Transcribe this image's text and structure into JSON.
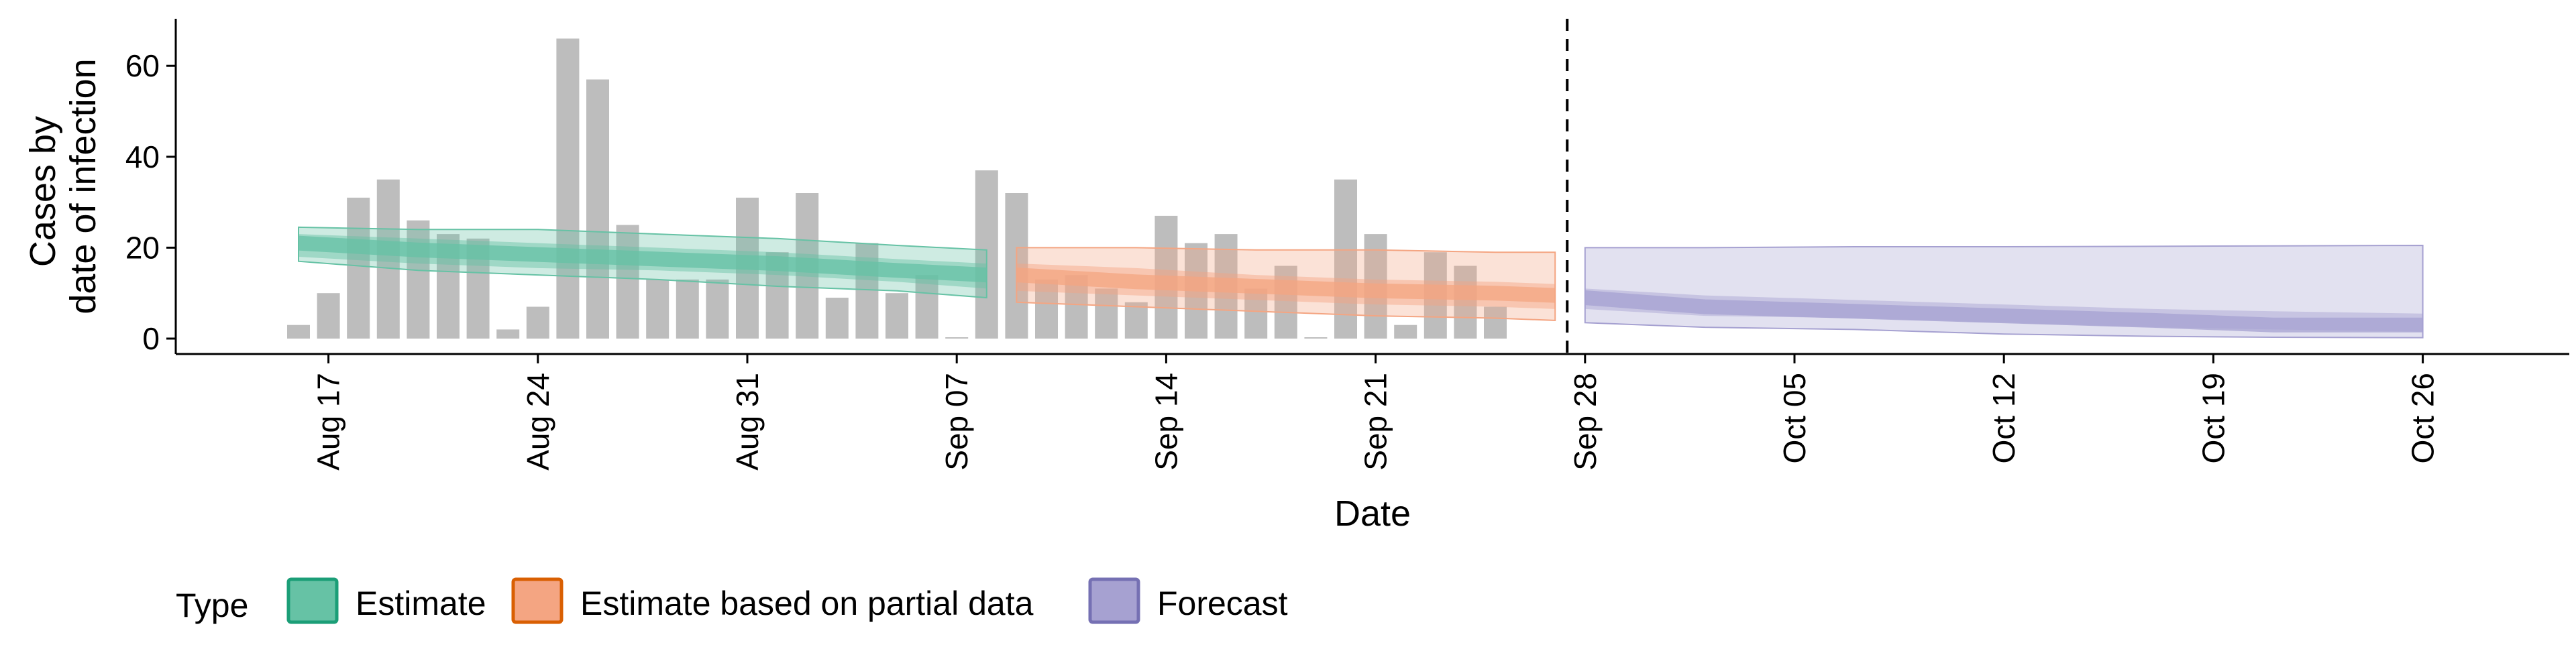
{
  "chart_data": {
    "type": "bar",
    "xlabel": "Date",
    "ylabel_lines": [
      "Cases by",
      "date of infection"
    ],
    "ylim": [
      0,
      70
    ],
    "yticks": [
      0,
      20,
      40,
      60
    ],
    "x_start": "2020-08-16",
    "x_end": "2020-10-26",
    "xticks": [
      {
        "date": "2020-08-17",
        "label": "Aug 17"
      },
      {
        "date": "2020-08-24",
        "label": "Aug 24"
      },
      {
        "date": "2020-08-31",
        "label": "Aug 31"
      },
      {
        "date": "2020-09-07",
        "label": "Sep 07"
      },
      {
        "date": "2020-09-14",
        "label": "Sep 14"
      },
      {
        "date": "2020-09-21",
        "label": "Sep 21"
      },
      {
        "date": "2020-09-28",
        "label": "Sep 28"
      },
      {
        "date": "2020-10-05",
        "label": "Oct 05"
      },
      {
        "date": "2020-10-12",
        "label": "Oct 12"
      },
      {
        "date": "2020-10-19",
        "label": "Oct 19"
      },
      {
        "date": "2020-10-26",
        "label": "Oct 26"
      }
    ],
    "reference_line_date": "2020-09-27",
    "observed_cases": {
      "start_date": "2020-08-16",
      "values": [
        3,
        10,
        31,
        35,
        26,
        23,
        22,
        2,
        7,
        66,
        57,
        25,
        13,
        13,
        13,
        31,
        19,
        32,
        9,
        21,
        10,
        14,
        0,
        37,
        32,
        13,
        14,
        11,
        8,
        27,
        21,
        23,
        11,
        16,
        0,
        35,
        23,
        3,
        19,
        16,
        7
      ],
      "color": "#bdbdbd"
    },
    "series": [
      {
        "name": "Estimate",
        "color": "#1b9e77",
        "fill": "#66c2a5",
        "x": [
          "2020-08-16",
          "2020-08-20",
          "2020-08-24",
          "2020-08-28",
          "2020-09-01",
          "2020-09-05",
          "2020-09-08"
        ],
        "median": [
          21,
          19.5,
          18.5,
          17.5,
          16.5,
          15,
          14
        ],
        "inner_lower": [
          18,
          16.5,
          15.5,
          15,
          14,
          12.5,
          11
        ],
        "inner_upper": [
          23,
          22,
          21,
          20,
          19,
          17.5,
          16.5
        ],
        "outer_lower": [
          17,
          15,
          14,
          13,
          11.5,
          10.5,
          9
        ],
        "outer_upper": [
          24.5,
          24,
          24,
          23,
          22,
          20.5,
          19.5
        ]
      },
      {
        "name": "Estimate based on partial data",
        "color": "#d95f02",
        "fill": "#f4a582",
        "x": [
          "2020-09-09",
          "2020-09-13",
          "2020-09-17",
          "2020-09-21",
          "2020-09-25",
          "2020-09-27"
        ],
        "median": [
          14,
          12.5,
          11.5,
          10.5,
          10,
          9.5
        ],
        "inner_lower": [
          10.5,
          9.5,
          8.5,
          7.5,
          7,
          6.5
        ],
        "inner_upper": [
          16.5,
          15.5,
          14,
          13,
          12.5,
          12
        ],
        "outer_lower": [
          8,
          7,
          6,
          5,
          4.5,
          4
        ],
        "outer_upper": [
          20,
          20,
          19.5,
          19.5,
          19,
          19
        ]
      },
      {
        "name": "Forecast",
        "color": "#7570b3",
        "fill": "#a6a1d1",
        "x": [
          "2020-09-28",
          "2020-10-02",
          "2020-10-07",
          "2020-10-12",
          "2020-10-17",
          "2020-10-21",
          "2020-10-26"
        ],
        "median": [
          9,
          7,
          6,
          5,
          4,
          3,
          3
        ],
        "inner_lower": [
          6.5,
          5,
          4.5,
          3.5,
          2.5,
          2,
          1.5
        ],
        "inner_upper": [
          11,
          9.5,
          8.5,
          7.5,
          6.5,
          6,
          5.5
        ],
        "outer_lower": [
          3.5,
          2.5,
          2,
          1,
          0.5,
          0.3,
          0.2
        ],
        "outer_upper": [
          20,
          20,
          20.2,
          20.2,
          20.3,
          20.4,
          20.5
        ]
      }
    ],
    "legend": {
      "title": "Type",
      "position": "bottom",
      "items": [
        "Estimate",
        "Estimate based on partial data",
        "Forecast"
      ]
    },
    "grid": false
  }
}
